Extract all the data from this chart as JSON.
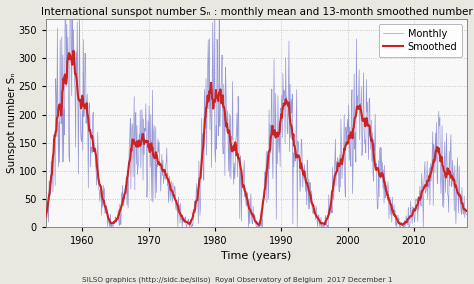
{
  "title": "International sunspot number Sₙ : monthly mean and 13-month smoothed number",
  "xlabel": "Time (years)",
  "ylabel": "Sunspot number Sₙ",
  "xlim": [
    1954.5,
    2018.0
  ],
  "ylim": [
    0,
    370
  ],
  "yticks": [
    0,
    50,
    100,
    150,
    200,
    250,
    300,
    350
  ],
  "xticks": [
    1960,
    1970,
    1980,
    1990,
    2000,
    2010
  ],
  "monthly_color": "#7777cc",
  "smoothed_color": "#cc2222",
  "monthly_alpha": 0.75,
  "monthly_lw": 0.5,
  "smoothed_lw": 1.5,
  "legend_monthly": "Monthly",
  "legend_smoothed": "Smoothed",
  "footer": "SILSO graphics (http://sidc.be/silso)  Royal Observatory of Belgium  2017 December 1",
  "background_color": "#e8e8e0",
  "plot_bg_color": "#f8f8f8",
  "grid_color": "#bbbbbb",
  "cycles": [
    {
      "ts": 1954.3,
      "tp": 1957.9,
      "te": 1964.7,
      "peak": 285,
      "noise": 0.45
    },
    {
      "ts": 1964.7,
      "tp": 1968.9,
      "te": 1976.5,
      "peak": 156,
      "noise": 0.35
    },
    {
      "ts": 1976.5,
      "tp": 1979.9,
      "te": 1986.8,
      "peak": 232,
      "noise": 0.4
    },
    {
      "ts": 1986.8,
      "tp": 1989.6,
      "te": 1996.4,
      "peak": 213,
      "noise": 0.38
    },
    {
      "ts": 1996.4,
      "tp": 2001.0,
      "te": 2008.5,
      "peak": 180,
      "noise": 0.35
    },
    {
      "ts": 2008.5,
      "tp": 2014.3,
      "te": 2019.0,
      "peak": 116,
      "noise": 0.4
    }
  ]
}
